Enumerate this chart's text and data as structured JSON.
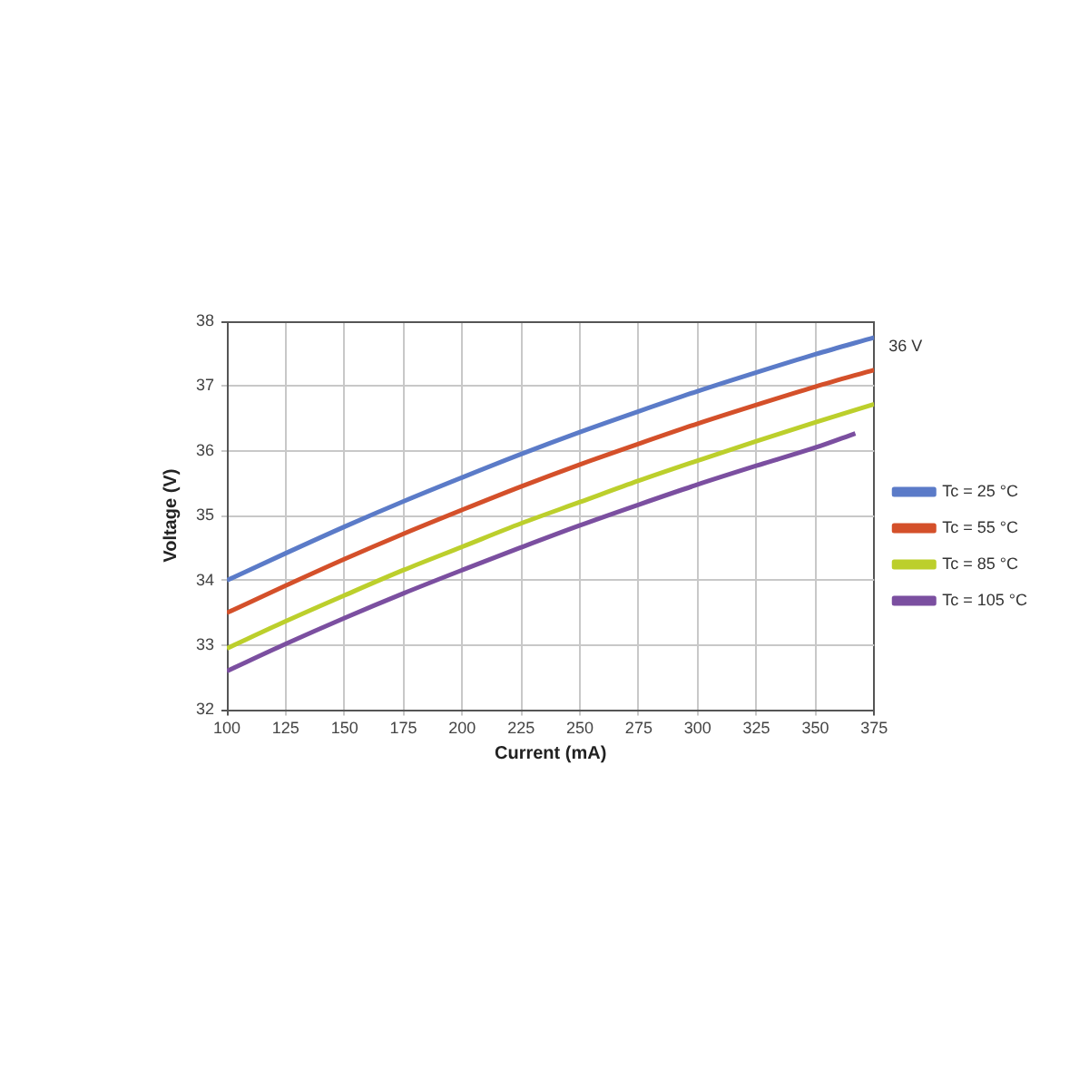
{
  "chart_data": {
    "type": "line",
    "xlabel": "Current (mA)",
    "ylabel": "Voltage (V)",
    "annotations": [
      "36 V"
    ],
    "series": [
      {
        "name": "Tc = 25 °C",
        "color": "#5b7bc8",
        "x": [
          100,
          125,
          150,
          175,
          200,
          225,
          250,
          275,
          300,
          325,
          350,
          375
        ],
        "values": [
          34.0,
          34.42,
          34.83,
          35.22,
          35.59,
          35.95,
          36.29,
          36.61,
          36.92,
          37.21,
          37.49,
          37.75
        ]
      },
      {
        "name": "Tc = 55 °C",
        "color": "#d4502a",
        "x": [
          100,
          125,
          150,
          175,
          200,
          225,
          250,
          275,
          300,
          325,
          350,
          375
        ],
        "values": [
          33.5,
          33.92,
          34.33,
          34.72,
          35.09,
          35.45,
          35.79,
          36.11,
          36.42,
          36.71,
          36.99,
          37.25
        ]
      },
      {
        "name": "Tc = 85 °C",
        "color": "#bccf2c",
        "x": [
          100,
          125,
          150,
          175,
          200,
          225,
          250,
          275,
          300,
          325,
          350,
          375
        ],
        "values": [
          32.95,
          33.37,
          33.77,
          34.16,
          34.52,
          34.88,
          35.21,
          35.54,
          35.85,
          36.15,
          36.44,
          36.72
        ]
      },
      {
        "name": "Tc = 105 °C",
        "color": "#7b4fa0",
        "x": [
          100,
          125,
          150,
          175,
          200,
          225,
          250,
          275,
          300,
          325,
          350,
          367
        ],
        "values": [
          32.6,
          33.02,
          33.42,
          33.8,
          34.16,
          34.51,
          34.85,
          35.17,
          35.48,
          35.77,
          36.05,
          36.27
        ]
      }
    ],
    "xlim": [
      100,
      375
    ],
    "xticks": [
      100,
      125,
      150,
      175,
      200,
      225,
      250,
      275,
      300,
      325,
      350,
      375
    ],
    "ylim": [
      32,
      38
    ],
    "yticks": [
      32,
      33,
      34,
      35,
      36,
      37,
      38
    ],
    "grid": true,
    "legend": "right",
    "marker": "none",
    "line_style": "solid"
  }
}
